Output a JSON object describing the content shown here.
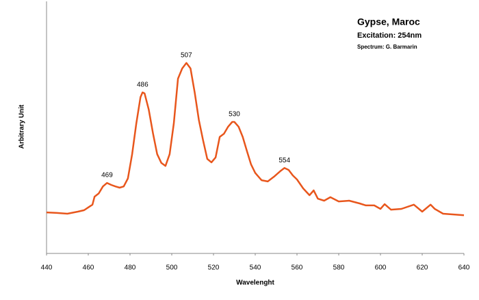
{
  "chart_data": {
    "type": "line",
    "title": "Gypse, Maroc",
    "subtitle": "Excitation: 254nm",
    "credit": "Spectrum: G. Barmarin",
    "x_label": "Wavelenght",
    "y_label": "Arbitrary Unit",
    "color": "#e8561c",
    "x": [
      440,
      445,
      450,
      455,
      458,
      460,
      462,
      463,
      465,
      467,
      469,
      471,
      473,
      475,
      477,
      479,
      481,
      483,
      485,
      486,
      487,
      489,
      491,
      493,
      495,
      497,
      499,
      501,
      503,
      505,
      507,
      509,
      511,
      513,
      515,
      517,
      519,
      521,
      523,
      525,
      527,
      529,
      530,
      532,
      534,
      536,
      538,
      540,
      543,
      546,
      549,
      552,
      554,
      556,
      558,
      560,
      563,
      566,
      568,
      570,
      573,
      576,
      580,
      585,
      590,
      593,
      597,
      600,
      602,
      605,
      610,
      616,
      620,
      624,
      626,
      630,
      635,
      640
    ],
    "y": [
      16.4,
      16.2,
      15.9,
      16.7,
      17.3,
      18.4,
      19.5,
      22.7,
      24,
      26.8,
      28.2,
      27.4,
      26.8,
      26.3,
      26.8,
      30,
      39.7,
      52,
      62.5,
      64.4,
      64,
      57.5,
      48,
      39.7,
      36.2,
      35,
      39.7,
      52,
      69.9,
      74,
      76.2,
      74,
      64.4,
      53.4,
      45.2,
      37.8,
      36.4,
      38.4,
      46.6,
      47.9,
      50.7,
      52.6,
      52.6,
      50.7,
      46.6,
      41,
      35.6,
      32.2,
      29.3,
      28.8,
      30.7,
      32.9,
      34.2,
      33.4,
      31.2,
      29.6,
      26,
      23.3,
      25.2,
      21.9,
      21.1,
      22.5,
      20.8,
      21.1,
      20,
      19.2,
      19.2,
      17.8,
      19.7,
      17.5,
      17.8,
      19.5,
      16.7,
      19.5,
      17.8,
      15.9,
      15.6,
      15.3
    ],
    "peaks": [
      469,
      486,
      507,
      530,
      554
    ],
    "xlim": [
      440,
      640
    ],
    "xticks": [
      440,
      460,
      480,
      500,
      520,
      540,
      560,
      580,
      600,
      620,
      640
    ],
    "ylim": [
      0,
      100
    ],
    "grid": false
  }
}
